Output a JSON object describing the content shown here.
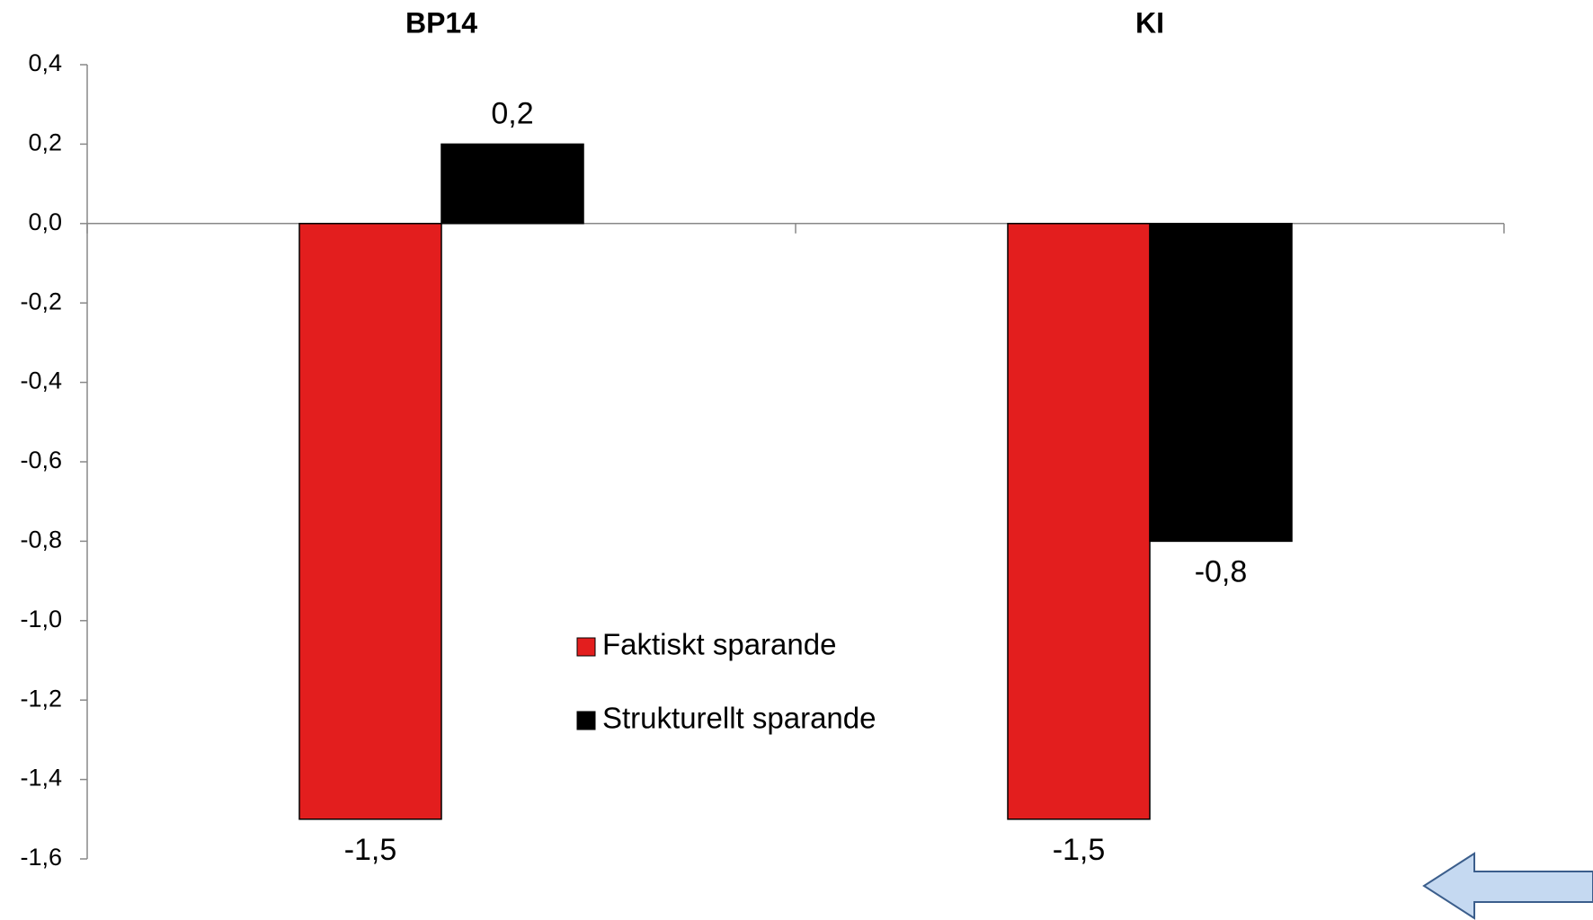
{
  "chart_data": {
    "type": "bar",
    "categories": [
      "BP14",
      "KI"
    ],
    "series": [
      {
        "name": "Faktiskt sparande",
        "color": "#e31e1e",
        "values": [
          -1.5,
          -1.5
        ],
        "value_labels": [
          "-1,5",
          "-1,5"
        ]
      },
      {
        "name": "Strukturellt sparande",
        "color": "#000000",
        "values": [
          0.2,
          -0.8
        ],
        "value_labels": [
          "0,2",
          "-0,8"
        ]
      }
    ],
    "ylim": [
      -1.6,
      0.4
    ],
    "yticks": [
      {
        "value": 0.4,
        "label": "0,4"
      },
      {
        "value": 0.2,
        "label": "0,2"
      },
      {
        "value": 0.0,
        "label": "0,0"
      },
      {
        "value": -0.2,
        "label": "-0,2"
      },
      {
        "value": -0.4,
        "label": "-0,4"
      },
      {
        "value": -0.6,
        "label": "-0,6"
      },
      {
        "value": -0.8,
        "label": "-0,8"
      },
      {
        "value": -1.0,
        "label": "-1,0"
      },
      {
        "value": -1.2,
        "label": "-1,2"
      },
      {
        "value": -1.4,
        "label": "-1,4"
      },
      {
        "value": -1.6,
        "label": "-1,6"
      }
    ],
    "grid": false
  }
}
